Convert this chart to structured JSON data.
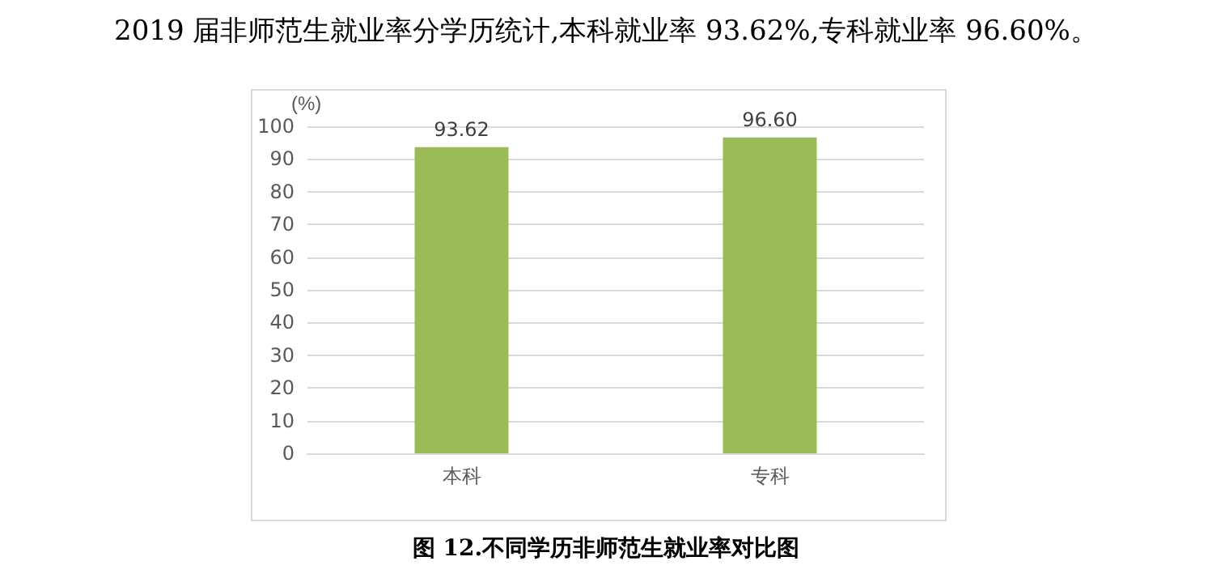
{
  "chart_data": {
    "type": "bar",
    "title": "2019 届非师范生就业率分学历统计,本科就业率 93.62%,专科就业率 96.60%。",
    "ylabel": "(%)",
    "annotations": [
      "图 12.不同学历非师范生就业率对比图"
    ],
    "categories": [
      "本科",
      "专科"
    ],
    "values": [
      93.62,
      96.6
    ],
    "value_labels": [
      "93.62",
      "96.60"
    ],
    "color": "#9bbb59",
    "ylim": [
      0,
      100
    ],
    "yticks": [
      0,
      10,
      20,
      30,
      40,
      50,
      60,
      70,
      80,
      90,
      100
    ],
    "grid": "y"
  }
}
